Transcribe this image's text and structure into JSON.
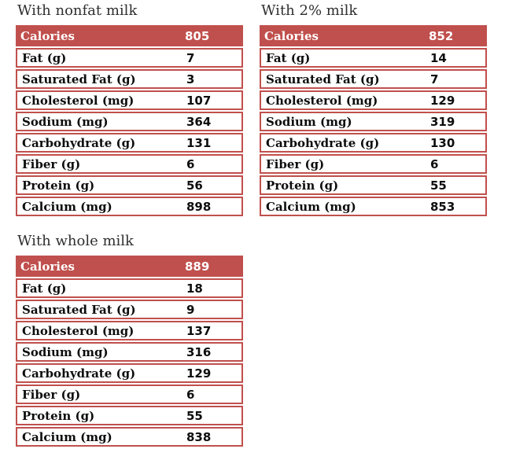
{
  "accent_color": "#c0504d",
  "text_color": "#0d0d0d",
  "header_text_color": "#ffffff",
  "chart_data": [
    {
      "type": "table",
      "title": "With nonfat milk",
      "header": {
        "label": "Calories",
        "value": 805
      },
      "rows": [
        {
          "label": "Fat (g)",
          "value": 7
        },
        {
          "label": "Saturated Fat (g)",
          "value": 3
        },
        {
          "label": "Cholesterol (mg)",
          "value": 107
        },
        {
          "label": "Sodium (mg)",
          "value": 364
        },
        {
          "label": "Carbohydrate (g)",
          "value": 131
        },
        {
          "label": "Fiber (g)",
          "value": 6
        },
        {
          "label": "Protein (g)",
          "value": 56
        },
        {
          "label": "Calcium (mg)",
          "value": 898
        }
      ]
    },
    {
      "type": "table",
      "title": "With 2% milk",
      "header": {
        "label": "Calories",
        "value": 852
      },
      "rows": [
        {
          "label": "Fat (g)",
          "value": 14
        },
        {
          "label": "Saturated Fat (g)",
          "value": 7
        },
        {
          "label": "Cholesterol (mg)",
          "value": 129
        },
        {
          "label": "Sodium (mg)",
          "value": 319
        },
        {
          "label": "Carbohydrate (g)",
          "value": 130
        },
        {
          "label": "Fiber (g)",
          "value": 6
        },
        {
          "label": "Protein (g)",
          "value": 55
        },
        {
          "label": "Calcium (mg)",
          "value": 853
        }
      ]
    },
    {
      "type": "table",
      "title": "With whole milk",
      "header": {
        "label": "Calories",
        "value": 889
      },
      "rows": [
        {
          "label": "Fat (g)",
          "value": 18
        },
        {
          "label": "Saturated Fat (g)",
          "value": 9
        },
        {
          "label": "Cholesterol (mg)",
          "value": 137
        },
        {
          "label": "Sodium (mg)",
          "value": 316
        },
        {
          "label": "Carbohydrate (g)",
          "value": 129
        },
        {
          "label": "Fiber (g)",
          "value": 6
        },
        {
          "label": "Protein (g)",
          "value": 55
        },
        {
          "label": "Calcium (mg)",
          "value": 838
        }
      ]
    }
  ]
}
